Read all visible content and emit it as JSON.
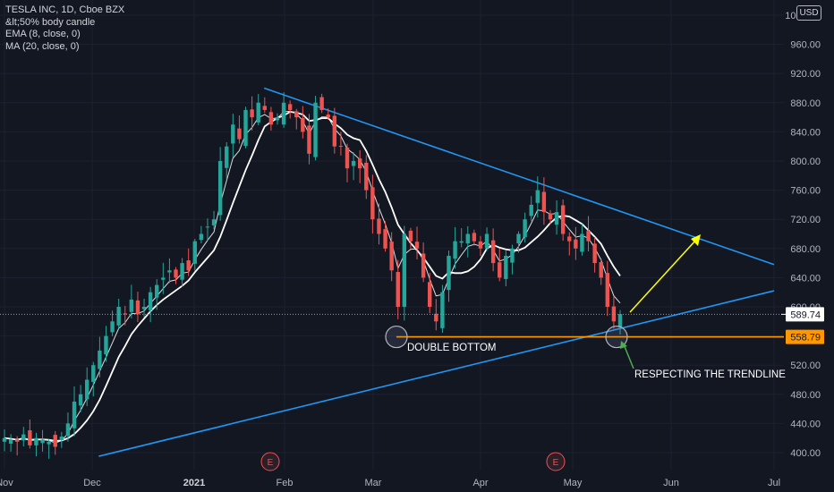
{
  "legend": {
    "title": "TESLA INC, 1D, Cboe BZX",
    "line2": "&lt;50% body candle",
    "line3": "EMA (8, close, 0)",
    "line4": "MA (20, close, 0)"
  },
  "currency_button": "USD",
  "colors": {
    "background": "#131722",
    "up": "#26a69a",
    "down": "#ef5350",
    "trendline": "#2196f3",
    "support": "#ff9800",
    "arrow": "#ffff00",
    "ema": "#ffffff",
    "ma": "#ffffff"
  },
  "chart_data": {
    "type": "candlestick",
    "title": "TESLA INC, 1D, Cboe BZX",
    "x_ticks": [
      "Nov",
      "Dec",
      "2021",
      "Feb",
      "Mar",
      "Apr",
      "May",
      "Jun",
      "Jul"
    ],
    "y_ticks": [
      "400.00",
      "440.00",
      "480.00",
      "520.00",
      "560.00",
      "600.00",
      "640.00",
      "680.00",
      "720.00",
      "760.00",
      "800.00",
      "840.00",
      "880.00",
      "920.00",
      "960.00",
      "1000.00"
    ],
    "ylim": [
      390,
      1010
    ],
    "last_price_label": "589.74",
    "support_price_label": "558.79",
    "last_price": 589.74,
    "support_price": 558.79,
    "earnings_markers": [
      {
        "label": "E",
        "date": "2021-01-27"
      },
      {
        "label": "E",
        "date": "2021-04-26"
      }
    ],
    "annotations": [
      {
        "text": "DOUBLE BOTTOM"
      },
      {
        "text": "RESPECTING THE TRENDLINE"
      }
    ],
    "trendlines": [
      {
        "name": "upper",
        "from": {
          "date": "2021-01-25",
          "price": 900
        },
        "to": {
          "date": "2021-07-01",
          "price": 658
        }
      },
      {
        "name": "lower",
        "from": {
          "date": "2020-12-03",
          "price": 395
        },
        "to": {
          "date": "2021-07-01",
          "price": 622
        }
      }
    ],
    "closes_sampled": [
      420,
      418,
      415,
      425,
      410,
      420,
      418,
      415,
      408,
      422,
      440,
      470,
      480,
      500,
      520,
      540,
      560,
      580,
      600,
      590,
      610,
      590,
      600,
      620,
      630,
      640,
      650,
      640,
      660,
      650,
      690,
      700,
      710,
      720,
      800,
      820,
      850,
      830,
      870,
      860,
      880,
      870,
      850,
      860,
      880,
      870,
      860,
      840,
      810,
      880,
      870,
      860,
      820,
      820,
      790,
      800,
      790,
      760,
      720,
      700,
      680,
      650,
      600,
      700,
      690,
      680,
      640,
      600,
      580,
      620,
      670,
      690,
      690,
      700,
      690,
      680,
      700,
      660,
      640,
      670,
      680,
      700,
      720,
      740,
      760,
      730,
      720,
      730,
      700,
      690,
      680,
      700,
      690,
      660,
      640,
      600,
      580,
      590
    ]
  }
}
